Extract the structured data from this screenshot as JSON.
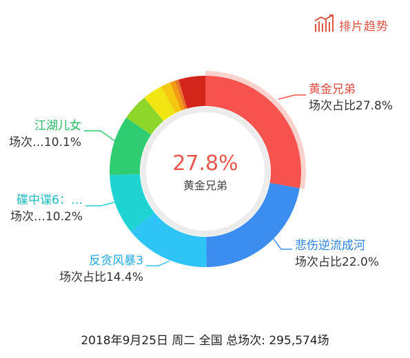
{
  "header": {
    "trend_label": "排片趋势",
    "accent": "#e15241"
  },
  "center": {
    "value": "27.8%",
    "label": "黄金兄弟"
  },
  "footer": {
    "text": "2018年9月25日 周二 全国 总场次: 295,574场"
  },
  "chart_data": {
    "type": "pie",
    "variant": "donut",
    "start_angle_deg": 0,
    "selected_index": 0,
    "slices": [
      {
        "name": "黄金兄弟",
        "value": 27.8,
        "color": "#f7534e",
        "label_lines": [
          "黄金兄弟",
          "场次占比27.8%"
        ]
      },
      {
        "name": "悲伤逆流成河",
        "value": 22.0,
        "color": "#3b8ef0",
        "label_lines": [
          "悲伤逆流成河",
          "场次占比22.0%"
        ]
      },
      {
        "name": "反贪风暴3",
        "value": 14.4,
        "color": "#2ec4f5",
        "label_lines": [
          "反贪风暴3",
          "场次占比14.4%"
        ]
      },
      {
        "name": "碟中谍6：…",
        "value": 10.2,
        "color": "#1fd3d3",
        "label_lines": [
          "碟中谍6：…",
          "场次…10.2%"
        ]
      },
      {
        "name": "江湖儿女",
        "value": 10.1,
        "color": "#2fcc71",
        "label_lines": [
          "江湖儿女",
          "场次…10.1%"
        ]
      },
      {
        "value": 4.5,
        "color": "#8ed62a"
      },
      {
        "value": 3.4,
        "color": "#f2e612"
      },
      {
        "value": 1.6,
        "color": "#f7c812"
      },
      {
        "value": 0.9,
        "color": "#f39c12"
      },
      {
        "value": 0.6,
        "color": "#e8732a"
      },
      {
        "value": 4.5,
        "color": "#d2261b"
      }
    ]
  }
}
